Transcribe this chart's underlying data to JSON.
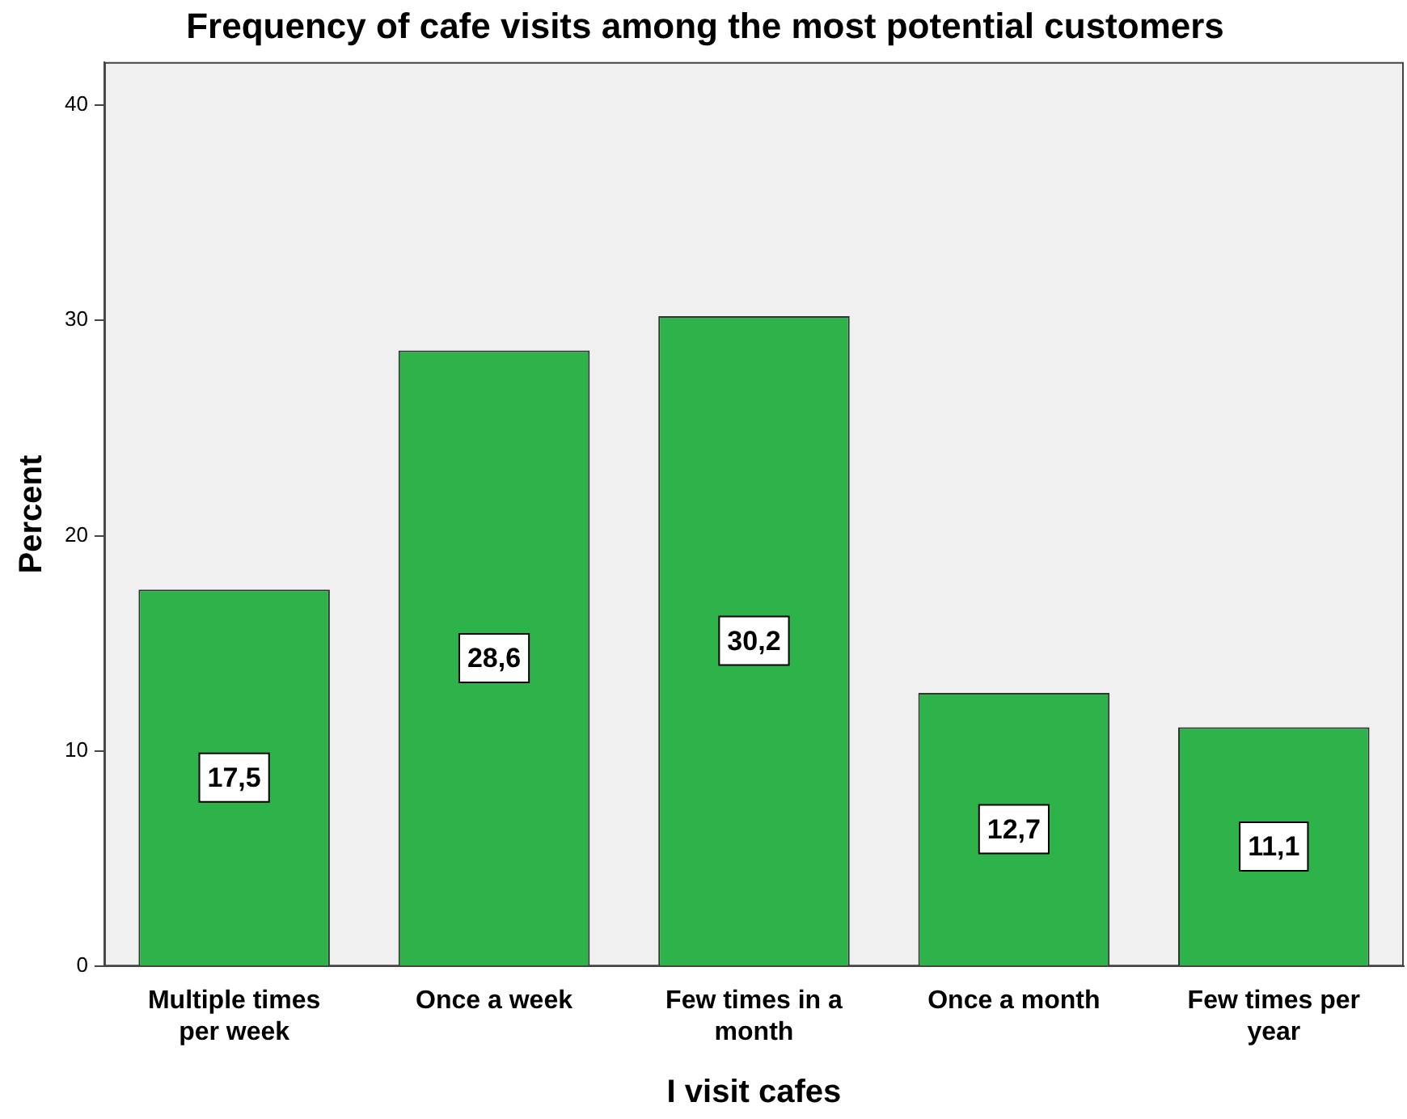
{
  "chart_data": {
    "type": "bar",
    "title": "Frequency of cafe visits among the most potential customers",
    "xlabel": "I visit cafes",
    "ylabel": "Percent",
    "categories": [
      "Multiple times per week",
      "Once a week",
      "Few times in a month",
      "Once a month",
      "Few times per year"
    ],
    "values": [
      17.5,
      28.6,
      30.2,
      12.7,
      11.1
    ],
    "value_labels": [
      "17,5",
      "28,6",
      "30,2",
      "12,7",
      "11,1"
    ],
    "color": "#2db34a",
    "ylim": [
      0,
      42
    ],
    "yticks": [
      0,
      10,
      20,
      30,
      40
    ],
    "grid": false,
    "legend": false
  }
}
